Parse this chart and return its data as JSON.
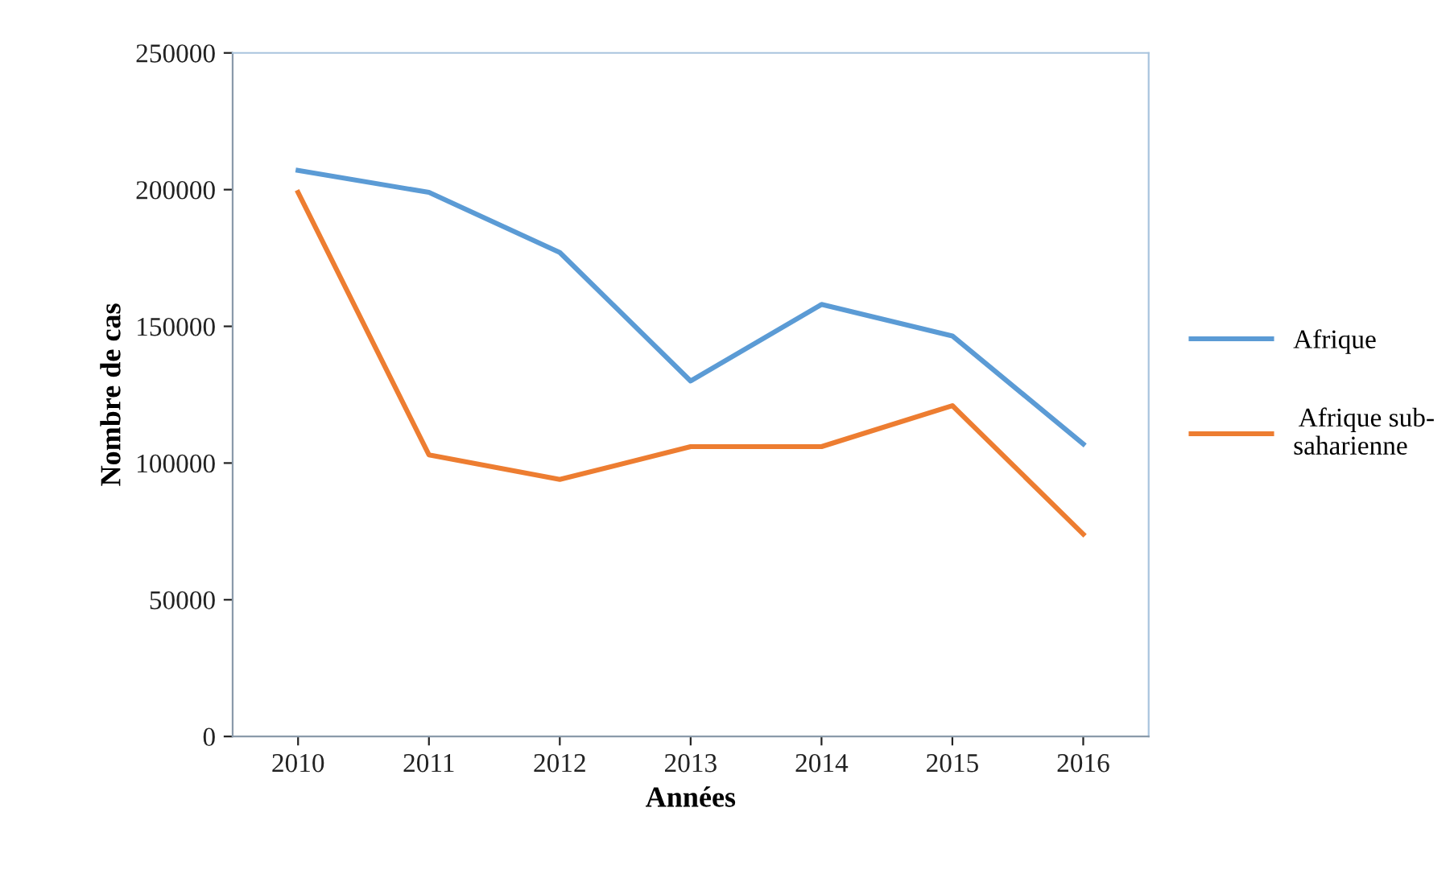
{
  "chart_data": {
    "type": "line",
    "xlabel": "Années",
    "ylabel": "Nombre de cas",
    "categories": [
      "2010",
      "2011",
      "2012",
      "2013",
      "2014",
      "2015",
      "2016"
    ],
    "series": [
      {
        "name": "Afrique",
        "color": "#5b9bd5",
        "values": [
          207000,
          199000,
          177000,
          130000,
          158000,
          146500,
          107000
        ]
      },
      {
        "name": " Afrique sub-\nsaharienne",
        "color": "#ed7d31",
        "values": [
          199000,
          103000,
          94000,
          106000,
          106000,
          121000,
          74000
        ]
      }
    ],
    "ylim": [
      0,
      250000
    ],
    "yticks": [
      0,
      50000,
      100000,
      150000,
      200000,
      250000
    ],
    "grid": false,
    "legend": "right",
    "marker": "none",
    "line_style": "solid"
  }
}
